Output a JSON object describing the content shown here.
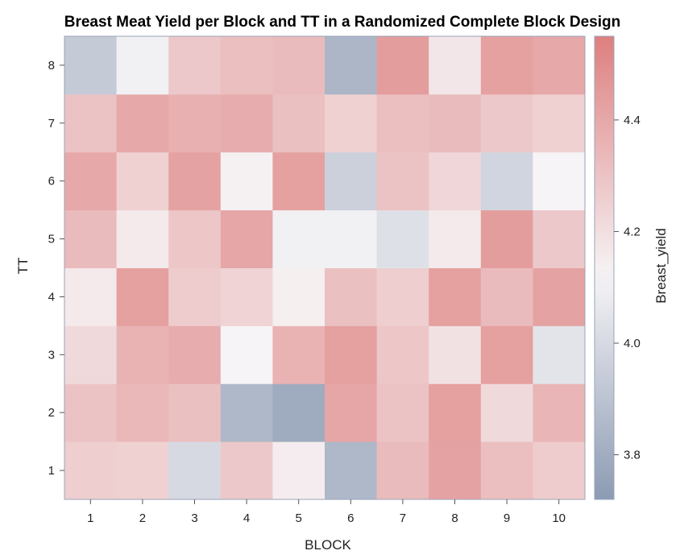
{
  "chart_data": {
    "type": "heatmap",
    "title": "Breast Meat Yield per Block and TT in a Randomized Complete Block Design",
    "xlabel": "BLOCK",
    "ylabel": "TT",
    "x": [
      1,
      2,
      3,
      4,
      5,
      6,
      7,
      8,
      9,
      10
    ],
    "y": [
      1,
      2,
      3,
      4,
      5,
      6,
      7,
      8
    ],
    "x_tick_labels": [
      "1",
      "2",
      "3",
      "4",
      "5",
      "6",
      "7",
      "8",
      "9",
      "10"
    ],
    "y_tick_labels": [
      "1",
      "2",
      "3",
      "4",
      "5",
      "6",
      "7",
      "8"
    ],
    "values": [
      [
        4.26,
        4.25,
        4.0,
        4.28,
        4.15,
        3.85,
        4.33,
        4.42,
        4.32,
        4.27
      ],
      [
        4.3,
        4.34,
        4.31,
        3.85,
        3.79,
        4.41,
        4.3,
        4.43,
        4.22,
        4.35
      ],
      [
        4.22,
        4.36,
        4.38,
        4.12,
        4.36,
        4.43,
        4.29,
        4.19,
        4.43,
        4.05
      ],
      [
        4.16,
        4.43,
        4.27,
        4.24,
        4.14,
        4.31,
        4.26,
        4.43,
        4.33,
        4.42
      ],
      [
        4.33,
        4.16,
        4.29,
        4.41,
        4.1,
        4.1,
        4.03,
        4.16,
        4.44,
        4.28
      ],
      [
        4.4,
        4.25,
        4.42,
        4.13,
        4.43,
        3.96,
        4.3,
        4.23,
        3.98,
        4.12
      ],
      [
        4.3,
        4.4,
        4.37,
        4.38,
        4.31,
        4.25,
        4.32,
        4.33,
        4.28,
        4.25
      ],
      [
        3.93,
        4.1,
        4.28,
        4.32,
        4.33,
        3.84,
        4.44,
        4.17,
        4.43,
        4.4
      ]
    ],
    "colorbar": {
      "label": "Breast_yield",
      "min": 3.72,
      "max": 4.55,
      "ticks": [
        3.8,
        4.0,
        4.2,
        4.4
      ],
      "tick_labels": [
        "3.8",
        "4.0",
        "4.2",
        "4.4"
      ],
      "colors": {
        "low": "#8c9bb3",
        "mid": "#f6f4f6",
        "high": "#de7f7f"
      },
      "mid_value": 4.12
    },
    "grid": false,
    "legend": "colorbar-right"
  }
}
